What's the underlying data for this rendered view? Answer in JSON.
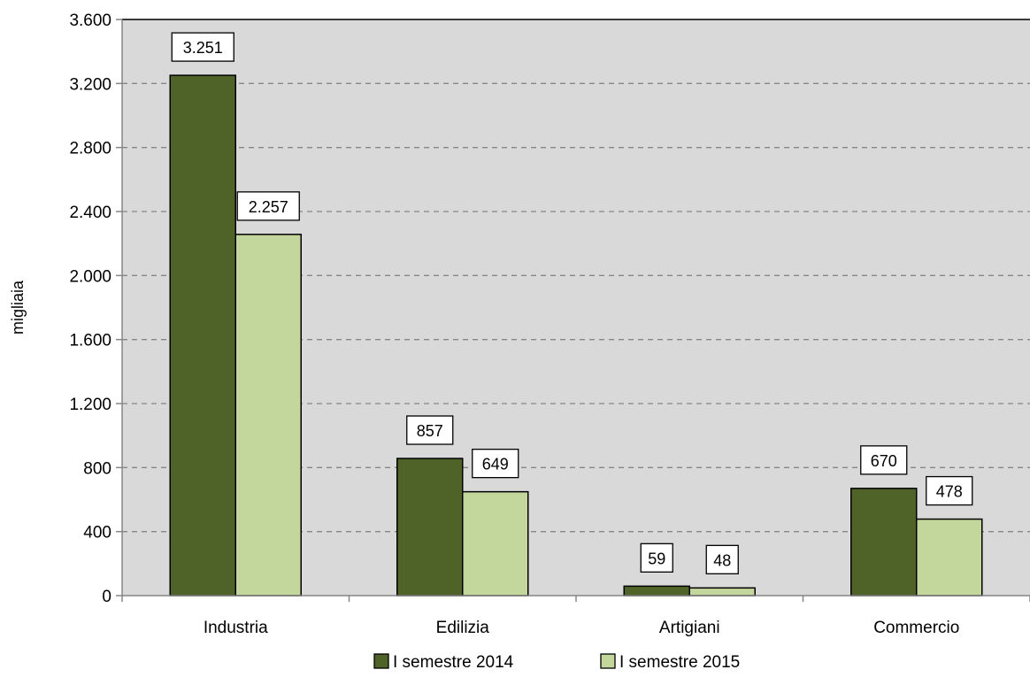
{
  "chart_data": {
    "type": "bar",
    "title": "",
    "xlabel": "",
    "ylabel": "migliaia",
    "categories": [
      "Industria",
      "Edilizia",
      "Artigiani",
      "Commercio"
    ],
    "series": [
      {
        "name": "I semestre 2014",
        "values": [
          3251,
          857,
          59,
          670
        ],
        "labels": [
          "3.251",
          "857",
          "59",
          "670"
        ],
        "color": "#4f6228"
      },
      {
        "name": "I semestre 2015",
        "values": [
          2257,
          649,
          48,
          478
        ],
        "labels": [
          "2.257",
          "649",
          "48",
          "478"
        ],
        "color": "#c3d69b"
      }
    ],
    "ylim": [
      0,
      3600
    ],
    "yticks": [
      0,
      400,
      800,
      1200,
      1600,
      2000,
      2400,
      2800,
      3200,
      3600
    ],
    "ytick_labels": [
      "0",
      "400",
      "800",
      "1.200",
      "1.600",
      "2.000",
      "2.400",
      "2.800",
      "3.200",
      "3.600"
    ],
    "grid": true,
    "grid_style": "dashed",
    "plot_background": "#d9d9d9",
    "legend_position": "bottom"
  }
}
